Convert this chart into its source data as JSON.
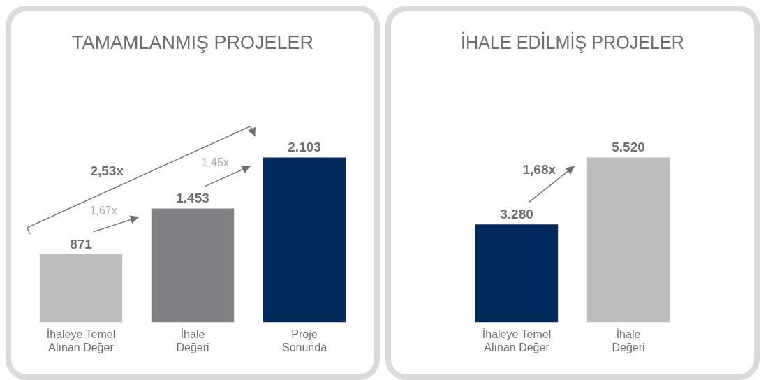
{
  "chart_data": [
    {
      "type": "bar",
      "title": "TAMAMLANMIŞ PROJELER",
      "categories": [
        "İhaleye Temel Alınan Değer",
        "İhale Değeri",
        "Proje Sonunda"
      ],
      "values": [
        871,
        1453,
        2103
      ],
      "colors": [
        "#bcbdbf",
        "#808184",
        "#002b5c"
      ],
      "value_labels": [
        "871",
        "1.453",
        "2.103"
      ],
      "annotations": [
        "1,67x",
        "1,45x",
        "2,53x"
      ],
      "grid": false,
      "legend": false
    },
    {
      "type": "bar",
      "title": "İHALE EDİLMİŞ PROJELER",
      "categories": [
        "İhaleye Temel Alınan Değer",
        "İhale Değeri"
      ],
      "values": [
        3280,
        5520
      ],
      "colors": [
        "#002b5c",
        "#bcbdbf"
      ],
      "value_labels": [
        "3.280",
        "5.520"
      ],
      "annotations": [
        "1,68x"
      ],
      "grid": false,
      "legend": false
    }
  ]
}
